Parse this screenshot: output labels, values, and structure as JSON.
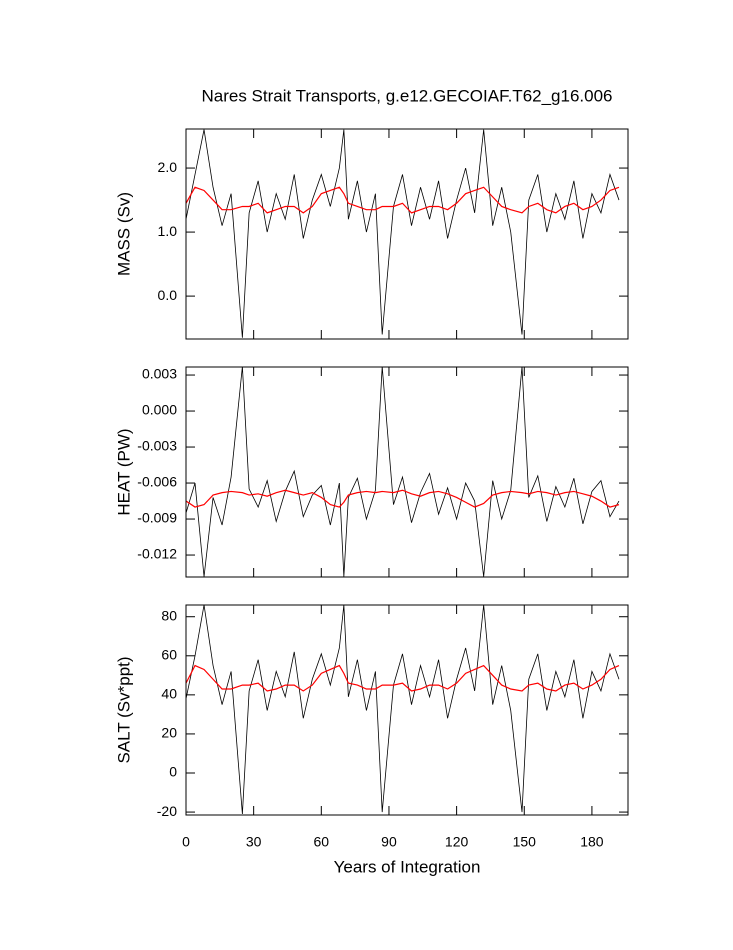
{
  "chart_data": [
    {
      "type": "line",
      "title": "Nares Strait Transports, g.e12.GECOIAF.T62_g16.006",
      "ylabel": "MASS (Sv)",
      "x": [
        0,
        4,
        8,
        12,
        16,
        20,
        25,
        28,
        32,
        36,
        40,
        44,
        48,
        52,
        56,
        60,
        64,
        68,
        70,
        72,
        76,
        80,
        84,
        87,
        92,
        96,
        100,
        104,
        108,
        112,
        116,
        120,
        124,
        128,
        132,
        136,
        140,
        144,
        149,
        152,
        156,
        160,
        164,
        168,
        172,
        176,
        180,
        184,
        188,
        192
      ],
      "series": [
        {
          "color": "#000000",
          "values": [
            1.2,
            1.9,
            2.6,
            1.7,
            1.1,
            1.6,
            -0.65,
            1.3,
            1.8,
            1.0,
            1.6,
            1.2,
            1.9,
            0.9,
            1.5,
            1.9,
            1.4,
            2.0,
            2.6,
            1.2,
            1.8,
            1.0,
            1.6,
            -0.6,
            1.4,
            1.9,
            1.1,
            1.7,
            1.2,
            1.8,
            0.9,
            1.5,
            2.0,
            1.3,
            2.6,
            1.1,
            1.7,
            1.0,
            -0.6,
            1.5,
            1.9,
            1.0,
            1.6,
            1.2,
            1.8,
            0.9,
            1.6,
            1.3,
            1.9,
            1.5
          ]
        },
        {
          "color": "#ff0000",
          "values": [
            1.45,
            1.7,
            1.65,
            1.5,
            1.35,
            1.35,
            1.4,
            1.4,
            1.45,
            1.3,
            1.35,
            1.4,
            1.4,
            1.3,
            1.4,
            1.6,
            1.65,
            1.7,
            1.6,
            1.45,
            1.4,
            1.35,
            1.35,
            1.4,
            1.4,
            1.45,
            1.3,
            1.35,
            1.4,
            1.4,
            1.35,
            1.45,
            1.6,
            1.65,
            1.7,
            1.55,
            1.4,
            1.35,
            1.3,
            1.4,
            1.45,
            1.35,
            1.3,
            1.4,
            1.45,
            1.35,
            1.4,
            1.5,
            1.65,
            1.7
          ]
        }
      ],
      "xlim": [
        0,
        196
      ],
      "xticks": [
        0,
        30,
        60,
        90,
        120,
        150,
        180
      ],
      "ylim": [
        -0.67,
        2.61
      ],
      "yticks": [
        {
          "value": 0,
          "label": "0.0"
        },
        {
          "value": 1,
          "label": "1.0"
        },
        {
          "value": 2,
          "label": "2.0"
        }
      ]
    },
    {
      "type": "line",
      "ylabel": "HEAT (PW)",
      "x": [
        0,
        4,
        8,
        12,
        16,
        20,
        25,
        28,
        32,
        36,
        40,
        44,
        48,
        52,
        56,
        60,
        64,
        68,
        70,
        72,
        76,
        80,
        84,
        87,
        92,
        96,
        100,
        104,
        108,
        112,
        116,
        120,
        124,
        128,
        132,
        136,
        140,
        144,
        149,
        152,
        156,
        160,
        164,
        168,
        172,
        176,
        180,
        184,
        188,
        192
      ],
      "series": [
        {
          "color": "#000000",
          "values": [
            -0.0085,
            -0.006,
            -0.0138,
            -0.0072,
            -0.0095,
            -0.0055,
            0.0037,
            -0.0065,
            -0.008,
            -0.0058,
            -0.0092,
            -0.0067,
            -0.005,
            -0.0088,
            -0.007,
            -0.0062,
            -0.0095,
            -0.006,
            -0.0138,
            -0.0072,
            -0.0056,
            -0.009,
            -0.0066,
            0.0037,
            -0.0078,
            -0.0055,
            -0.0093,
            -0.0068,
            -0.0052,
            -0.0086,
            -0.0064,
            -0.009,
            -0.006,
            -0.0075,
            -0.0138,
            -0.0058,
            -0.009,
            -0.0066,
            0.0037,
            -0.0072,
            -0.0054,
            -0.0092,
            -0.0063,
            -0.008,
            -0.0056,
            -0.0094,
            -0.0067,
            -0.0058,
            -0.0088,
            -0.0075
          ]
        },
        {
          "color": "#ff0000",
          "values": [
            -0.0075,
            -0.008,
            -0.0078,
            -0.007,
            -0.0068,
            -0.0067,
            -0.0068,
            -0.007,
            -0.0069,
            -0.0071,
            -0.0068,
            -0.0066,
            -0.0068,
            -0.007,
            -0.0068,
            -0.0072,
            -0.0078,
            -0.008,
            -0.0076,
            -0.007,
            -0.0068,
            -0.0067,
            -0.0068,
            -0.0067,
            -0.0068,
            -0.0066,
            -0.0069,
            -0.0071,
            -0.0068,
            -0.0067,
            -0.0069,
            -0.0072,
            -0.0076,
            -0.008,
            -0.0077,
            -0.007,
            -0.0068,
            -0.0067,
            -0.0068,
            -0.0069,
            -0.0067,
            -0.0068,
            -0.007,
            -0.0068,
            -0.0067,
            -0.0069,
            -0.0071,
            -0.0075,
            -0.008,
            -0.0078
          ]
        }
      ],
      "xlim": [
        0,
        196
      ],
      "xticks": [
        0,
        30,
        60,
        90,
        120,
        150,
        180
      ],
      "ylim": [
        -0.01383,
        0.00367
      ],
      "yticks": [
        -0.012,
        -0.009,
        -0.006,
        -0.003,
        {
          "value": 0,
          "label": "0.000"
        },
        0.003
      ]
    },
    {
      "type": "line",
      "ylabel": "SALT (Sv*ppt)",
      "xlabel": "Years of Integration",
      "x": [
        0,
        4,
        8,
        12,
        16,
        20,
        25,
        28,
        32,
        36,
        40,
        44,
        48,
        52,
        56,
        60,
        64,
        68,
        70,
        72,
        76,
        80,
        84,
        87,
        92,
        96,
        100,
        104,
        108,
        112,
        116,
        120,
        124,
        128,
        132,
        136,
        140,
        144,
        149,
        152,
        156,
        160,
        164,
        168,
        172,
        176,
        180,
        184,
        188,
        192
      ],
      "series": [
        {
          "color": "#000000",
          "values": [
            38,
            60,
            86,
            55,
            35,
            52,
            -21,
            42,
            58,
            32,
            52,
            39,
            62,
            28,
            48,
            61,
            45,
            64,
            86,
            39,
            58,
            32,
            52,
            -20,
            45,
            61,
            35,
            55,
            39,
            58,
            28,
            48,
            64,
            42,
            86,
            35,
            55,
            32,
            -20,
            48,
            61,
            32,
            52,
            39,
            58,
            28,
            52,
            42,
            61,
            48
          ]
        },
        {
          "color": "#ff0000",
          "values": [
            46,
            55,
            53,
            48,
            43,
            43,
            45,
            45,
            46,
            42,
            43,
            45,
            45,
            42,
            45,
            51,
            53,
            55,
            51,
            46,
            45,
            43,
            43,
            45,
            45,
            46,
            42,
            43,
            45,
            45,
            43,
            46,
            51,
            53,
            55,
            50,
            45,
            43,
            42,
            45,
            46,
            43,
            42,
            45,
            46,
            43,
            45,
            48,
            53,
            55
          ]
        }
      ],
      "xlim": [
        0,
        196
      ],
      "xticks": [
        0,
        30,
        60,
        90,
        120,
        150,
        180
      ],
      "ylim": [
        -21.5,
        86
      ],
      "yticks": [
        -20,
        0,
        20,
        40,
        60,
        80
      ]
    }
  ]
}
